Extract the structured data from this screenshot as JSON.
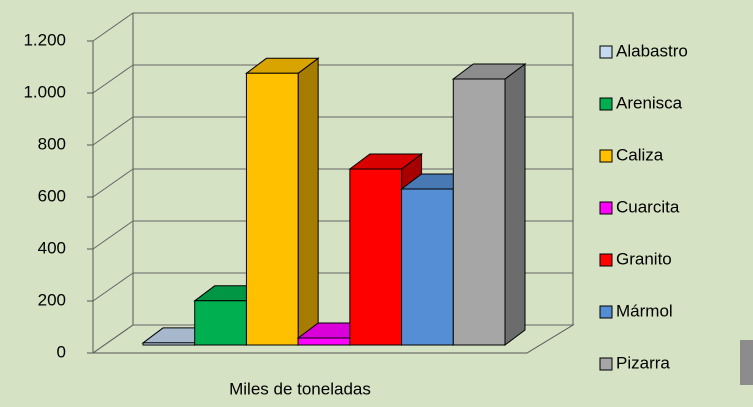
{
  "chart_data": {
    "type": "bar3d",
    "categories": [
      "Miles de toneladas"
    ],
    "series": [
      {
        "name": "Alabastro",
        "color": "#c5d9f1",
        "values": [
          8
        ]
      },
      {
        "name": "Arenisca",
        "color": "#00b050",
        "values": [
          170
        ]
      },
      {
        "name": "Caliza",
        "color": "#ffc000",
        "values": [
          1045
        ]
      },
      {
        "name": "Cuarcita",
        "color": "#ff00ff",
        "values": [
          27
        ]
      },
      {
        "name": "Granito",
        "color": "#ff0000",
        "values": [
          677
        ]
      },
      {
        "name": "Mármol",
        "color": "#558ed5",
        "values": [
          600
        ]
      },
      {
        "name": "Pizarra",
        "color": "#a6a6a6",
        "values": [
          1023
        ]
      }
    ],
    "ylim": [
      0,
      1200
    ],
    "yticks": [
      0,
      200,
      400,
      600,
      800,
      {
        "value": 1000,
        "label": "1.000"
      },
      {
        "value": 1200,
        "label": "1.200"
      }
    ],
    "grid": true,
    "legend": "right"
  }
}
